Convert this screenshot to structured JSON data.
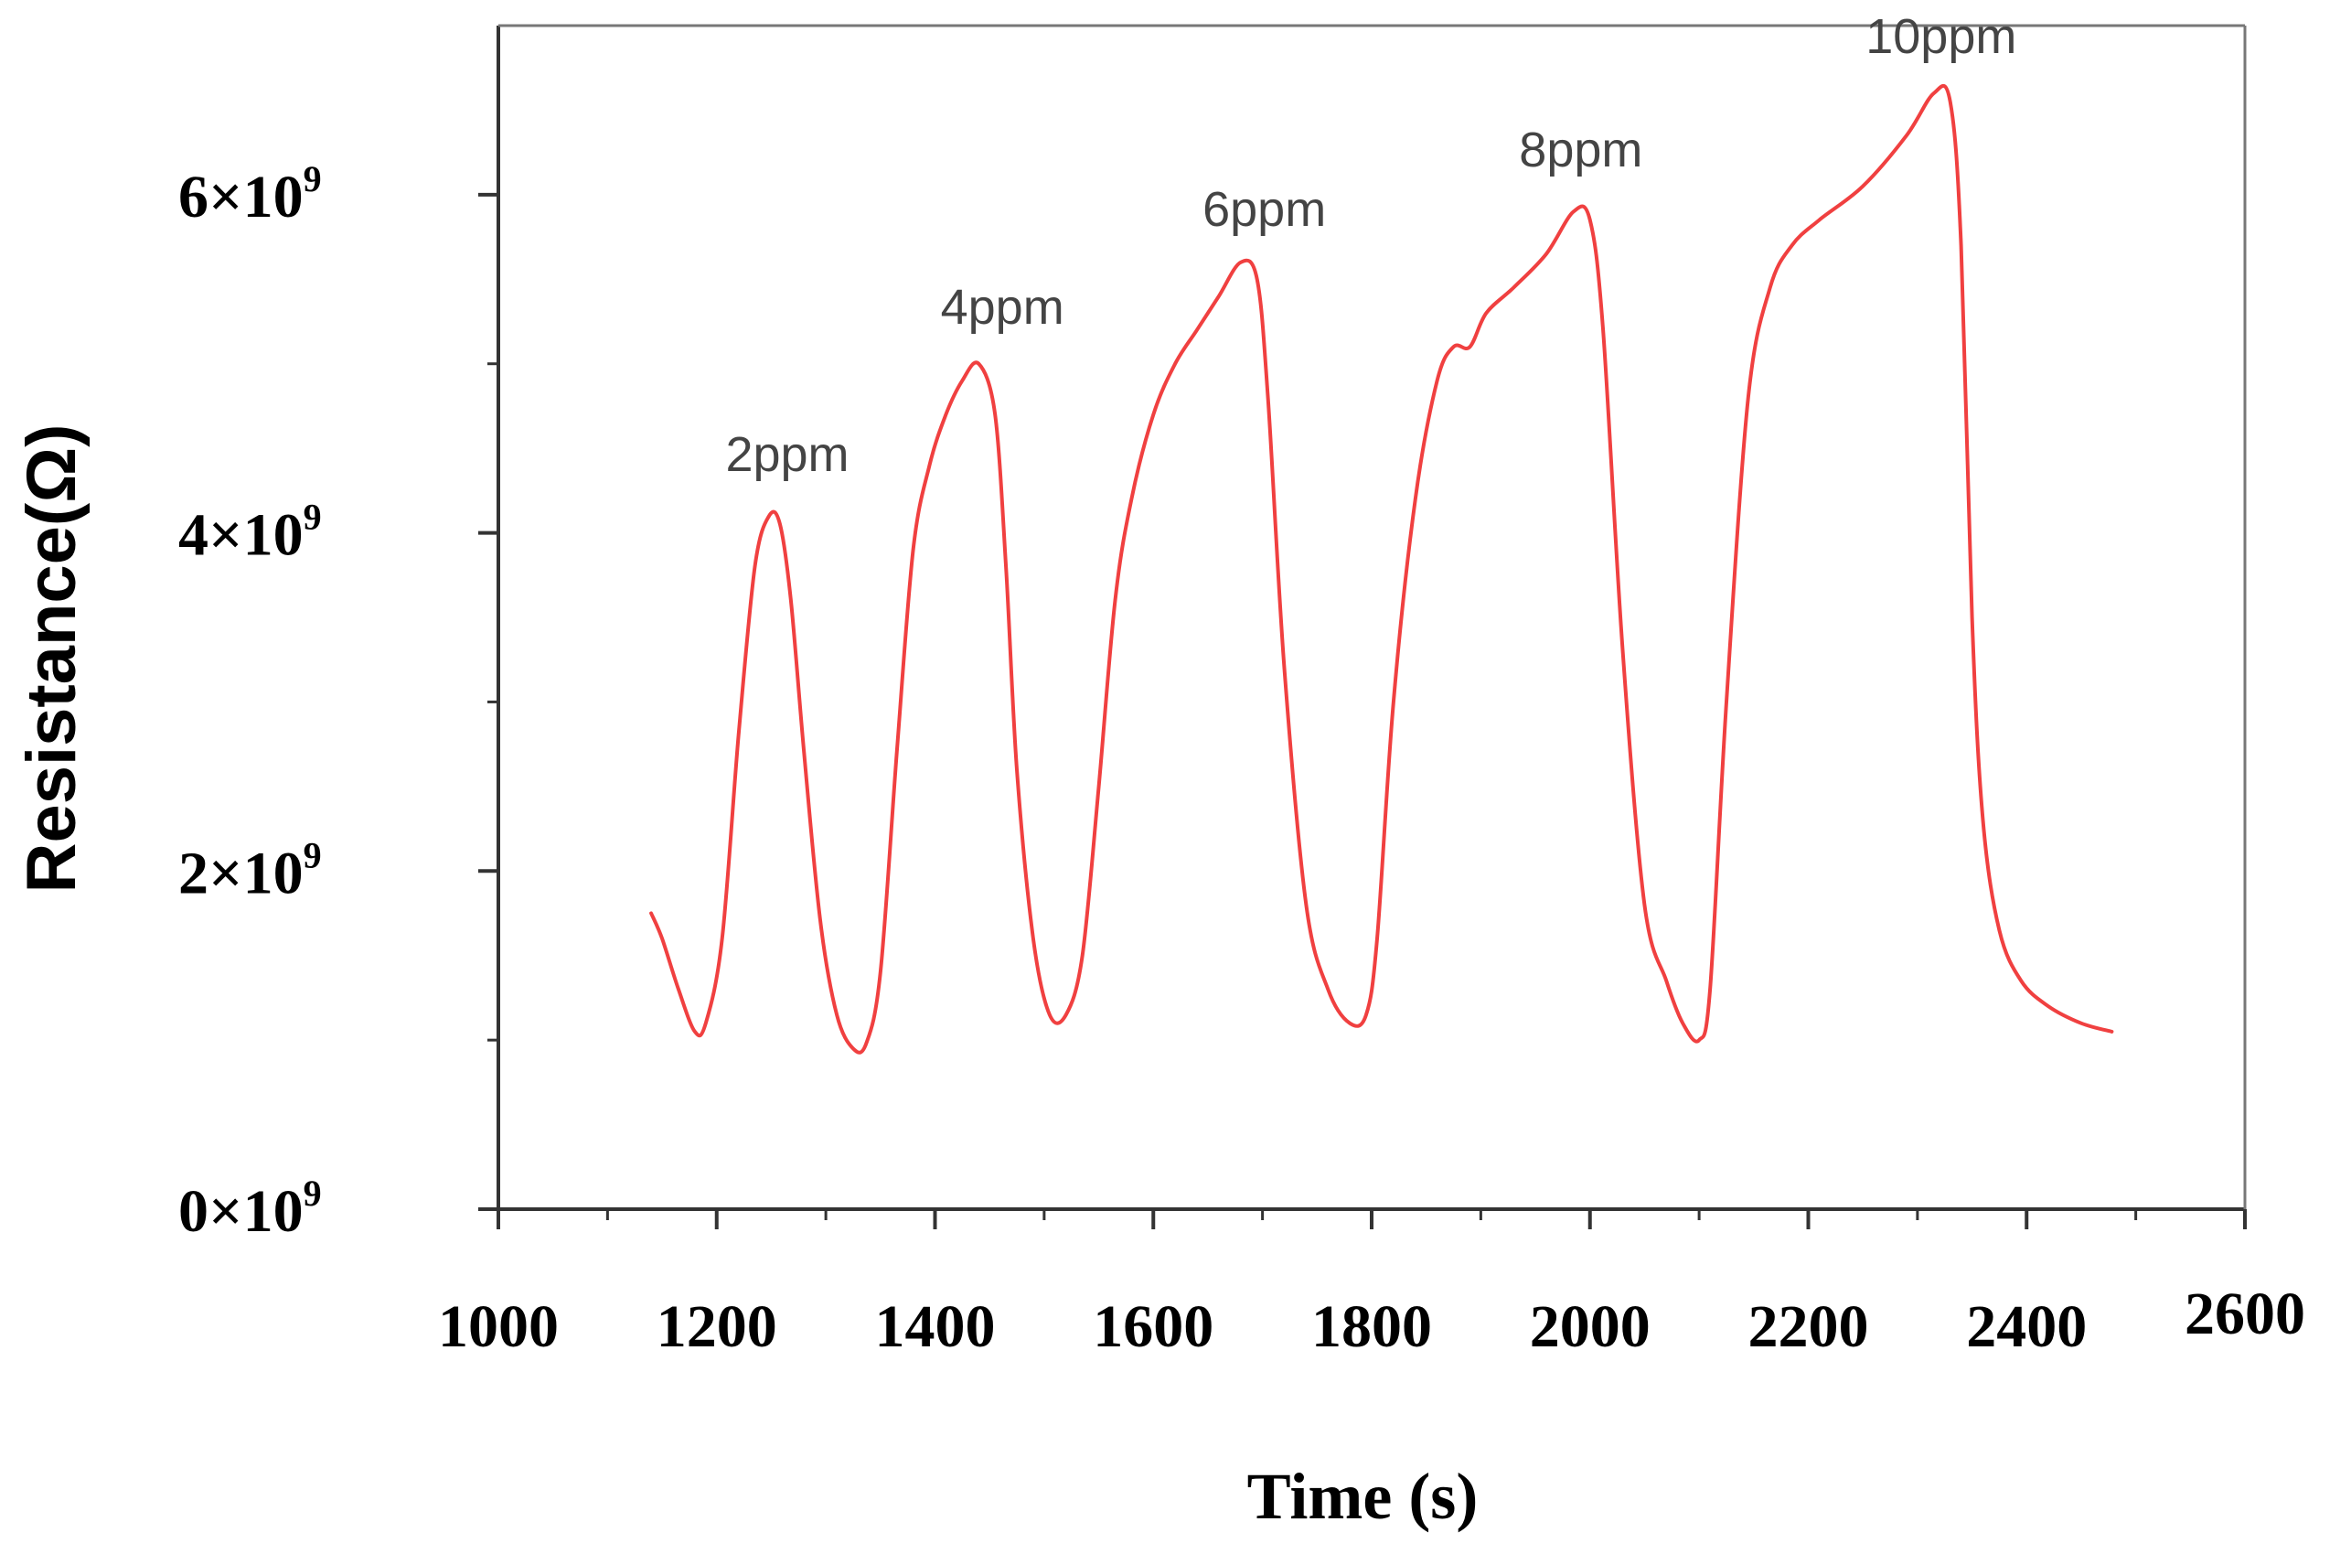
{
  "chart_data": {
    "type": "line",
    "title": "",
    "xlabel": "Time (s)",
    "ylabel": "Resistance(Ω)",
    "xlim": [
      1000,
      2600
    ],
    "ylim": [
      0,
      7000000000
    ],
    "x_ticks": [
      1000,
      1200,
      1400,
      1600,
      1800,
      2000,
      2200,
      2400,
      2600
    ],
    "x_tick_labels": [
      "1000",
      "1200",
      "1400",
      "1600",
      "1800",
      "2000",
      "2200",
      "2400",
      "2600"
    ],
    "y_ticks": [
      0,
      2000000000,
      4000000000,
      6000000000
    ],
    "y_tick_labels": [
      {
        "mantissa": "0",
        "times": "×",
        "base": "10",
        "exp": "9"
      },
      {
        "mantissa": "2",
        "times": "×",
        "base": "10",
        "exp": "9"
      },
      {
        "mantissa": "4",
        "times": "×",
        "base": "10",
        "exp": "9"
      },
      {
        "mantissa": "6",
        "times": "×",
        "base": "10",
        "exp": "9"
      }
    ],
    "grid": false,
    "series": [
      {
        "name": "Resistance",
        "color": "#f04040",
        "x": [
          1140,
          1150,
          1165,
          1180,
          1190,
          1205,
          1220,
          1235,
          1248,
          1258,
          1268,
          1280,
          1295,
          1310,
          1325,
          1337,
          1350,
          1365,
          1380,
          1395,
          1410,
          1425,
          1440,
          1455,
          1465,
          1475,
          1490,
          1505,
          1520,
          1535,
          1550,
          1565,
          1580,
          1600,
          1620,
          1640,
          1660,
          1680,
          1695,
          1705,
          1720,
          1740,
          1760,
          1780,
          1795,
          1805,
          1820,
          1840,
          1860,
          1875,
          1890,
          1905,
          1930,
          1960,
          1985,
          2000,
          2012,
          2030,
          2050,
          2070,
          2085,
          2100,
          2110,
          2125,
          2145,
          2165,
          2185,
          2210,
          2250,
          2290,
          2315,
          2330,
          2340,
          2350,
          2360,
          2375,
          2395,
          2420,
          2450,
          2478
        ],
        "values": [
          1750000000,
          1600000000,
          1300000000,
          1050000000,
          1100000000,
          1600000000,
          2800000000,
          3800000000,
          4100000000,
          4050000000,
          3600000000,
          2700000000,
          1700000000,
          1150000000,
          950000000,
          980000000,
          1400000000,
          2700000000,
          3900000000,
          4400000000,
          4700000000,
          4900000000,
          5000000000,
          4700000000,
          3800000000,
          2600000000,
          1600000000,
          1150000000,
          1150000000,
          1500000000,
          2500000000,
          3600000000,
          4200000000,
          4700000000,
          5000000000,
          5200000000,
          5400000000,
          5600000000,
          5500000000,
          4800000000,
          3200000000,
          1800000000,
          1300000000,
          1100000000,
          1150000000,
          1600000000,
          3000000000,
          4200000000,
          4900000000,
          5100000000,
          5100000000,
          5300000000,
          5450000000,
          5650000000,
          5900000000,
          5850000000,
          5200000000,
          3300000000,
          1800000000,
          1350000000,
          1100000000,
          1000000000,
          1300000000,
          3000000000,
          4800000000,
          5450000000,
          5700000000,
          5850000000,
          6050000000,
          6350000000,
          6600000000,
          6550000000,
          5700000000,
          3500000000,
          2300000000,
          1650000000,
          1350000000,
          1200000000,
          1100000000,
          1050000000
        ]
      }
    ],
    "annotations": [
      {
        "text": "2ppm",
        "x": 1258,
        "y": 4150000000
      },
      {
        "text": "4ppm",
        "x": 1455,
        "y": 5020000000
      },
      {
        "text": "6ppm",
        "x": 1695,
        "y": 5600000000
      },
      {
        "text": "8ppm",
        "x": 1985,
        "y": 5950000000
      },
      {
        "text": "10ppm",
        "x": 2315,
        "y": 6620000000
      }
    ]
  }
}
